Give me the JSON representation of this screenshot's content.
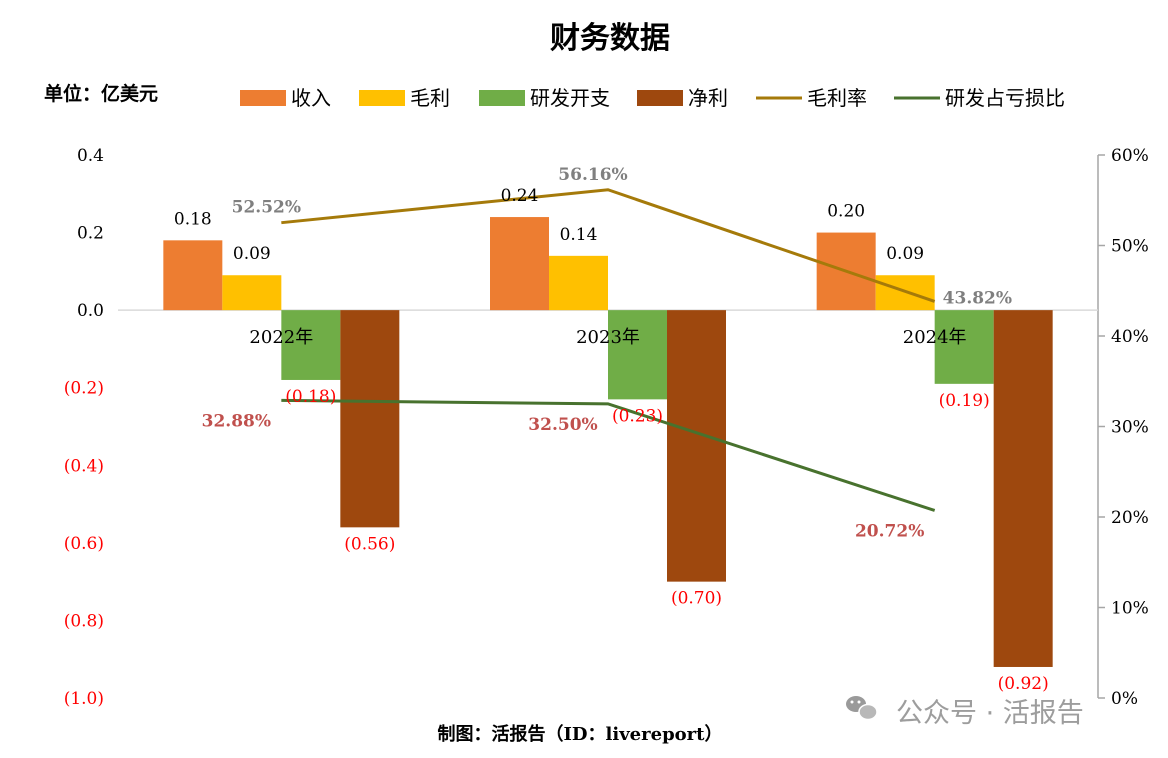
{
  "chart_data": {
    "type": "bar",
    "title": "财务数据",
    "unit_label": "单位：亿美元",
    "categories": [
      "2022年",
      "2023年",
      "2024年"
    ],
    "series": [
      {
        "name": "收入",
        "kind": "bar",
        "axis": "left",
        "color": "#ED7D31",
        "values": [
          0.18,
          0.24,
          0.2
        ],
        "labels": [
          "0.18",
          "0.24",
          "0.20"
        ]
      },
      {
        "name": "毛利",
        "kind": "bar",
        "axis": "left",
        "color": "#FFC000",
        "values": [
          0.09,
          0.14,
          0.09
        ],
        "labels": [
          "0.09",
          "0.14",
          "0.09"
        ]
      },
      {
        "name": "研发开支",
        "kind": "bar",
        "axis": "left",
        "color": "#70AD47",
        "values": [
          -0.18,
          -0.23,
          -0.19
        ],
        "labels": [
          "(0.18)",
          "(0.23)",
          "(0.19)"
        ]
      },
      {
        "name": "净利",
        "kind": "bar",
        "axis": "left",
        "color": "#9E480E",
        "values": [
          -0.56,
          -0.7,
          -0.92
        ],
        "labels": [
          "(0.56)",
          "(0.70)",
          "(0.92)"
        ]
      },
      {
        "name": "毛利率",
        "kind": "line",
        "axis": "right",
        "color": "#A57A0A",
        "values": [
          52.52,
          56.16,
          43.82
        ],
        "labels": [
          "52.52%",
          "56.16%",
          "43.82%"
        ]
      },
      {
        "name": "研发占亏损比",
        "kind": "line",
        "axis": "right",
        "color": "#48722E",
        "values": [
          32.88,
          32.5,
          20.72
        ],
        "labels": [
          "32.88%",
          "32.50%",
          "20.72%"
        ]
      }
    ],
    "y_left": {
      "min": -1.0,
      "max": 0.4,
      "ticks": [
        0.4,
        0.2,
        0.0,
        -0.2,
        -0.4,
        -0.6,
        -0.8,
        -1.0
      ],
      "tick_labels": [
        "0.4",
        "0.2",
        "0.0",
        "(0.2)",
        "(0.4)",
        "(0.6)",
        "(0.8)",
        "(1.0)"
      ]
    },
    "y_right": {
      "min": 0,
      "max": 60,
      "ticks": [
        60,
        50,
        40,
        30,
        20,
        10,
        0
      ],
      "tick_labels": [
        "60%",
        "50%",
        "40%",
        "30%",
        "20%",
        "10%",
        "0%"
      ]
    },
    "legend_position": "top",
    "grid": false,
    "colors": {
      "negative_text": "#FF0000",
      "pct_text": "#C0504D",
      "pct_text_gray": "#7F7F7F",
      "axis": "#A6A6A6"
    }
  },
  "footer": {
    "credit": "制图：活报告（ID：livereport）"
  },
  "watermark": {
    "text": "公众号 · 活报告"
  }
}
